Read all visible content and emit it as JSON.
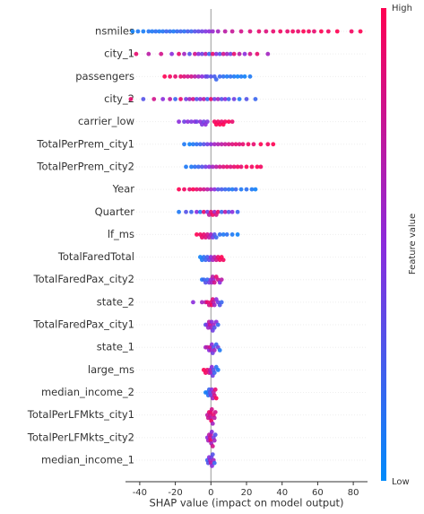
{
  "chart_data": {
    "type": "beeswarm",
    "xlabel": "SHAP value (impact on model output)",
    "xlim": [
      -48,
      88
    ],
    "xticks": [
      -40,
      -20,
      0,
      20,
      40,
      60,
      80
    ],
    "colormap": [
      "#008bfb",
      "#8b2bdc",
      "#ff0051"
    ],
    "colorbar": {
      "label": "Feature value",
      "high_label": "High",
      "low_label": "Low"
    },
    "series": [
      {
        "name": "nsmiles",
        "values": [
          -44,
          -41,
          -38,
          -35,
          -33,
          -31,
          -29,
          -27,
          -25,
          -23,
          -21,
          -19,
          -17,
          -15,
          -13,
          -11,
          -9,
          -7,
          -5,
          -3,
          -1,
          1,
          4,
          8,
          12,
          17,
          22,
          27,
          31,
          35,
          39,
          43,
          46,
          49,
          52,
          55,
          58,
          62,
          66,
          71,
          79,
          84
        ],
        "feature_values": [
          0.05,
          0.1,
          0.08,
          0.12,
          0.1,
          0.15,
          0.1,
          0.12,
          0.2,
          0.15,
          0.1,
          0.18,
          0.2,
          0.15,
          0.25,
          0.2,
          0.3,
          0.35,
          0.4,
          0.45,
          0.5,
          0.55,
          0.6,
          0.7,
          0.75,
          0.8,
          0.85,
          0.9,
          0.85,
          0.9,
          0.95,
          0.9,
          0.95,
          0.9,
          1,
          0.95,
          0.9,
          1,
          0.95,
          1,
          0.95,
          1
        ]
      },
      {
        "name": "city_1",
        "values": [
          -42,
          -35,
          -28,
          -22,
          -18,
          -15,
          -12,
          -9,
          -7,
          -5,
          -3,
          -1,
          1,
          3,
          5,
          7,
          9,
          11,
          13,
          16,
          19,
          22,
          26,
          32
        ],
        "feature_values": [
          0.9,
          0.7,
          0.8,
          0.5,
          0.9,
          0.6,
          0.3,
          0.8,
          0.5,
          0.4,
          0.7,
          0.2,
          0.9,
          0.5,
          0.3,
          0.8,
          0.6,
          0.4,
          0.9,
          0.7,
          0.5,
          0.8,
          0.9,
          0.6
        ]
      },
      {
        "name": "passengers",
        "values": [
          -26,
          -23,
          -20,
          -17,
          -15,
          -13,
          -11,
          -9,
          -7,
          -5,
          -3,
          -2,
          0,
          2,
          3,
          5,
          7,
          9,
          11,
          13,
          15,
          17,
          19,
          22
        ],
        "feature_values": [
          1,
          0.95,
          0.9,
          0.9,
          0.85,
          0.8,
          0.8,
          0.7,
          0.6,
          0.5,
          0.4,
          0.35,
          0.3,
          0.25,
          0.2,
          0.2,
          0.15,
          0.1,
          0.15,
          0.1,
          0.05,
          0.1,
          0.05,
          0.1
        ]
      },
      {
        "name": "city_2",
        "values": [
          -45,
          -38,
          -32,
          -27,
          -23,
          -20,
          -17,
          -14,
          -12,
          -10,
          -8,
          -6,
          -4,
          -2,
          0,
          2,
          4,
          6,
          8,
          10,
          13,
          16,
          20,
          25
        ],
        "feature_values": [
          0.9,
          0.3,
          0.8,
          0.5,
          0.7,
          0.2,
          0.9,
          0.4,
          0.6,
          0.8,
          0.3,
          0.5,
          0.7,
          0.2,
          0.9,
          0.4,
          0.6,
          0.3,
          0.5,
          0.2,
          0.4,
          0.1,
          0.3,
          0.2
        ]
      },
      {
        "name": "carrier_low",
        "values": [
          -18,
          -15,
          -13,
          -11,
          -9,
          -8,
          -6,
          -5,
          -4,
          -3,
          -2,
          2,
          3,
          4,
          5,
          6,
          7,
          8,
          10,
          12
        ],
        "feature_values": [
          0.5,
          0.4,
          0.5,
          0.45,
          0.5,
          0.4,
          0.5,
          0.45,
          0.4,
          0.5,
          0.45,
          0.95,
          1,
          0.95,
          1,
          0.9,
          1,
          0.95,
          1,
          0.9
        ]
      },
      {
        "name": "TotalPerPrem_city1",
        "values": [
          -15,
          -12,
          -10,
          -8,
          -6,
          -4,
          -2,
          0,
          2,
          4,
          6,
          8,
          10,
          12,
          14,
          16,
          18,
          21,
          24,
          28,
          32,
          35
        ],
        "feature_values": [
          0.1,
          0.05,
          0.1,
          0.15,
          0.2,
          0.3,
          0.4,
          0.5,
          0.6,
          0.65,
          0.7,
          0.75,
          0.8,
          0.85,
          0.9,
          0.85,
          0.9,
          0.95,
          0.9,
          1,
          0.95,
          1
        ]
      },
      {
        "name": "TotalPerPrem_city2",
        "values": [
          -14,
          -11,
          -9,
          -7,
          -5,
          -3,
          -1,
          1,
          3,
          5,
          7,
          9,
          11,
          13,
          15,
          17,
          20,
          23,
          26,
          28
        ],
        "feature_values": [
          0.1,
          0.1,
          0.15,
          0.2,
          0.3,
          0.4,
          0.5,
          0.6,
          0.7,
          0.8,
          0.85,
          0.9,
          0.85,
          0.9,
          0.95,
          0.9,
          1,
          0.95,
          1,
          0.95
        ]
      },
      {
        "name": "Year",
        "values": [
          -18,
          -15,
          -12,
          -10,
          -8,
          -6,
          -4,
          -2,
          0,
          2,
          4,
          6,
          8,
          10,
          12,
          14,
          17,
          20,
          23,
          25
        ],
        "feature_values": [
          1,
          0.95,
          0.9,
          1,
          0.9,
          0.85,
          0.8,
          0.7,
          0.6,
          0.5,
          0.3,
          0.25,
          0.2,
          0.15,
          0.1,
          0.2,
          0.1,
          0.15,
          0.1,
          0.05
        ]
      },
      {
        "name": "Quarter",
        "values": [
          -18,
          -14,
          -11,
          -8,
          -6,
          -4,
          -2,
          -1,
          0,
          1,
          2,
          3,
          4,
          6,
          8,
          10,
          12,
          15
        ],
        "feature_values": [
          0.1,
          0.3,
          0.2,
          0.5,
          0.1,
          0.9,
          0.4,
          0.7,
          0.9,
          0.95,
          0.6,
          0.8,
          0.9,
          0.2,
          0.7,
          0.3,
          0.5,
          0.2
        ]
      },
      {
        "name": "lf_ms",
        "values": [
          -8,
          -6,
          -5,
          -4,
          -3,
          -2,
          -1,
          0,
          1,
          2,
          3,
          5,
          7,
          9,
          12,
          15
        ],
        "feature_values": [
          1,
          0.95,
          0.9,
          0.9,
          0.85,
          0.8,
          0.7,
          0.6,
          0.4,
          0.3,
          0.2,
          0.15,
          0.1,
          0.15,
          0.1,
          0.05
        ]
      },
      {
        "name": "TotalFaredTotal",
        "values": [
          -6,
          -5,
          -4,
          -3,
          -2,
          -1,
          0,
          1,
          2,
          3,
          4,
          5,
          6,
          7
        ],
        "feature_values": [
          0.05,
          0.1,
          0.15,
          0.2,
          0.25,
          0.35,
          0.5,
          0.6,
          0.7,
          0.8,
          0.9,
          0.95,
          1,
          0.95
        ]
      },
      {
        "name": "TotalFaredPax_city2",
        "values": [
          -5,
          -4,
          -3,
          -2,
          -1,
          0,
          0.5,
          1,
          1.5,
          2,
          3,
          4,
          5,
          6
        ],
        "feature_values": [
          0.1,
          0.2,
          0.3,
          0.2,
          0.4,
          0.5,
          0.6,
          0.7,
          0.6,
          0.8,
          0.9,
          0.8,
          0.5,
          0.7
        ]
      },
      {
        "name": "state_2",
        "values": [
          -10,
          -5,
          -3,
          -2,
          -1,
          0,
          0.5,
          1,
          1.5,
          2,
          3,
          4,
          5,
          6
        ],
        "feature_values": [
          0.5,
          0.6,
          0.7,
          0.9,
          0.8,
          0.9,
          0.95,
          0.85,
          0.7,
          0.6,
          0.5,
          0.4,
          0.3,
          0.2
        ]
      },
      {
        "name": "TotalFaredPax_city1",
        "values": [
          -3,
          -2,
          -1.5,
          -1,
          -0.5,
          0,
          0.5,
          1,
          1.5,
          2,
          3,
          4
        ],
        "feature_values": [
          0.3,
          0.5,
          0.6,
          0.7,
          0.8,
          0.6,
          0.5,
          0.4,
          0.6,
          0.3,
          0.5,
          0.2
        ]
      },
      {
        "name": "state_1",
        "values": [
          -3,
          -2,
          -1,
          -0.5,
          0,
          0.5,
          1,
          1.5,
          2,
          3,
          4,
          5
        ],
        "feature_values": [
          0.6,
          0.7,
          0.5,
          0.8,
          0.6,
          0.5,
          0.4,
          0.3,
          0.6,
          0.2,
          0.4,
          0.1
        ]
      },
      {
        "name": "large_ms",
        "values": [
          -4,
          -3,
          -2,
          -1,
          -0.5,
          0,
          0.5,
          1,
          1.5,
          2,
          3,
          4
        ],
        "feature_values": [
          1,
          0.95,
          0.9,
          0.8,
          0.7,
          0.6,
          0.5,
          0.4,
          0.3,
          0.2,
          0.15,
          0.1
        ]
      },
      {
        "name": "median_income_2",
        "values": [
          -3,
          -2,
          -1.5,
          -1,
          -0.5,
          0,
          0.5,
          1,
          1.5,
          2,
          2.5,
          3
        ],
        "feature_values": [
          0.05,
          0.1,
          0.15,
          0.2,
          0.3,
          0.4,
          0.5,
          0.6,
          0.7,
          0.8,
          0.9,
          1
        ]
      },
      {
        "name": "TotalPerLFMkts_city1",
        "values": [
          -2,
          -1.5,
          -1,
          -0.5,
          -0.2,
          0,
          0.2,
          0.5,
          1,
          1.5,
          2,
          2.5
        ],
        "feature_values": [
          0.7,
          0.8,
          0.9,
          0.8,
          0.7,
          0.9,
          0.95,
          0.8,
          0.6,
          0.9,
          0.7,
          0.8
        ]
      },
      {
        "name": "TotalPerLFMkts_city2",
        "values": [
          -2,
          -1.5,
          -1,
          -0.5,
          -0.2,
          0,
          0.2,
          0.5,
          1,
          1.5,
          2,
          2.5
        ],
        "feature_values": [
          0.5,
          0.6,
          0.7,
          0.8,
          0.9,
          0.7,
          0.6,
          0.5,
          0.8,
          0.4,
          0.6,
          0.3
        ]
      },
      {
        "name": "median_income_1",
        "values": [
          -2,
          -1.5,
          -1,
          -0.5,
          0,
          0.3,
          0.6,
          1,
          1.5,
          2
        ],
        "feature_values": [
          0.2,
          0.3,
          0.5,
          0.6,
          0.7,
          0.4,
          0.5,
          0.3,
          0.6,
          0.2
        ]
      }
    ]
  }
}
